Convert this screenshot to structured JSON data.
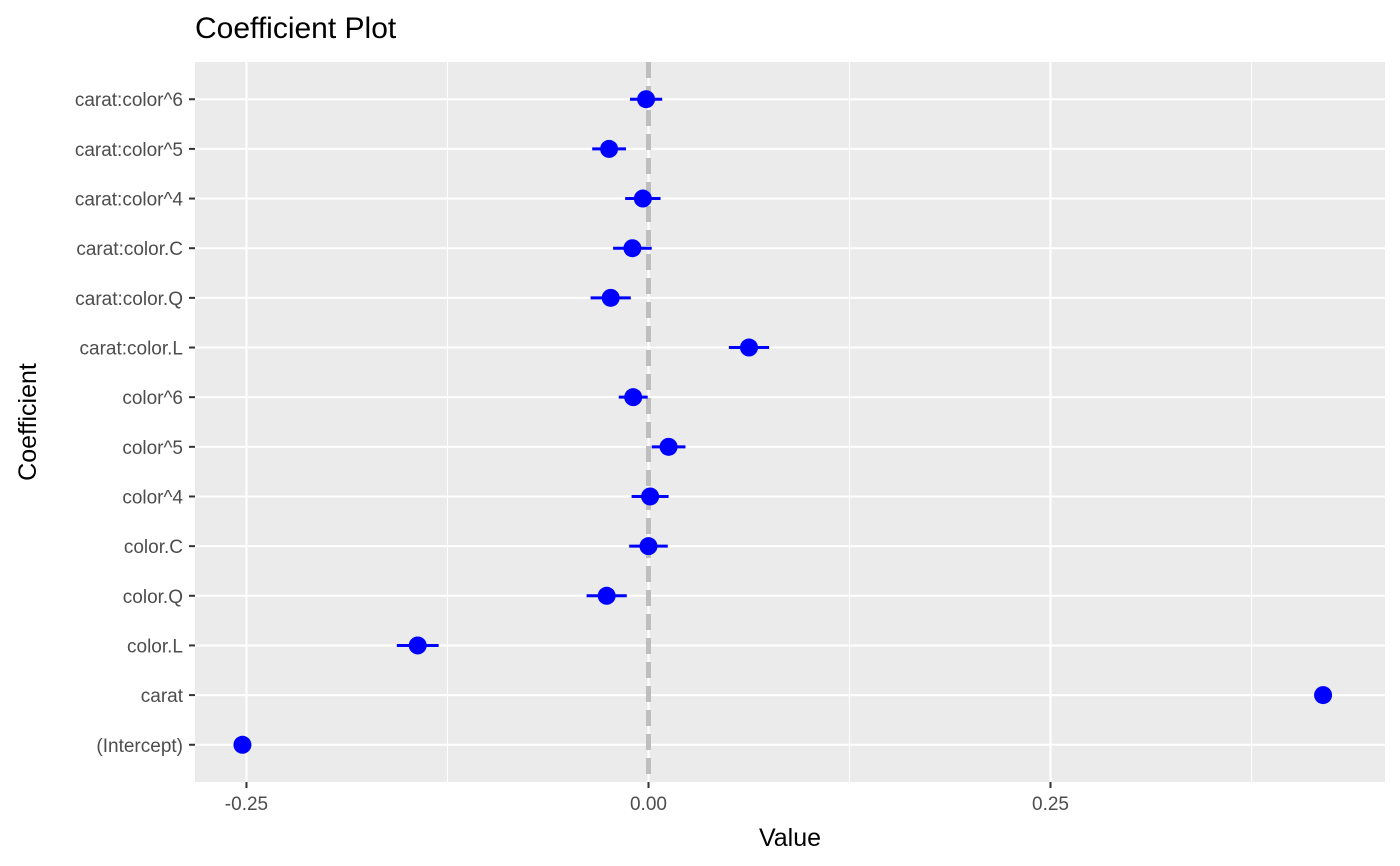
{
  "chart_data": {
    "type": "scatter",
    "title": "Coefficient Plot",
    "xlabel": "Value",
    "ylabel": "Coefficient",
    "xlim": [
      -0.282,
      0.458
    ],
    "x_ticks": [
      -0.25,
      0.0,
      0.25
    ],
    "x_tick_labels": [
      "-0.25",
      "0.00",
      "0.25"
    ],
    "reference_line": {
      "x": 0,
      "style": "dashed",
      "color": "#bebebe"
    },
    "grid": true,
    "colors": {
      "panel": "#ebebeb",
      "grid": "#ffffff",
      "point": "#0000ff",
      "ref_line": "#bebebe"
    },
    "coefficients": [
      {
        "name": "(Intercept)",
        "value": -0.2525,
        "low": null,
        "high": null
      },
      {
        "name": "carat",
        "value": 0.4195,
        "low": null,
        "high": null
      },
      {
        "name": "color.L",
        "value": -0.1435,
        "low": -0.1565,
        "high": -0.1305
      },
      {
        "name": "color.Q",
        "value": -0.026,
        "low": -0.0385,
        "high": -0.0135
      },
      {
        "name": "color.C",
        "value": 0.0,
        "low": -0.012,
        "high": 0.012
      },
      {
        "name": "color^4",
        "value": 0.001,
        "low": -0.0105,
        "high": 0.0125
      },
      {
        "name": "color^5",
        "value": 0.0125,
        "low": 0.002,
        "high": 0.023
      },
      {
        "name": "color^6",
        "value": -0.0095,
        "low": -0.0185,
        "high": -0.0005
      },
      {
        "name": "carat:color.L",
        "value": 0.0625,
        "low": 0.05,
        "high": 0.075
      },
      {
        "name": "carat:color.Q",
        "value": -0.0235,
        "low": -0.036,
        "high": -0.011
      },
      {
        "name": "carat:color.C",
        "value": -0.01,
        "low": -0.022,
        "high": 0.002
      },
      {
        "name": "carat:color^4",
        "value": -0.0035,
        "low": -0.0145,
        "high": 0.0075
      },
      {
        "name": "carat:color^5",
        "value": -0.0245,
        "low": -0.035,
        "high": -0.014
      },
      {
        "name": "carat:color^6",
        "value": -0.0015,
        "low": -0.0115,
        "high": 0.0085
      }
    ]
  }
}
